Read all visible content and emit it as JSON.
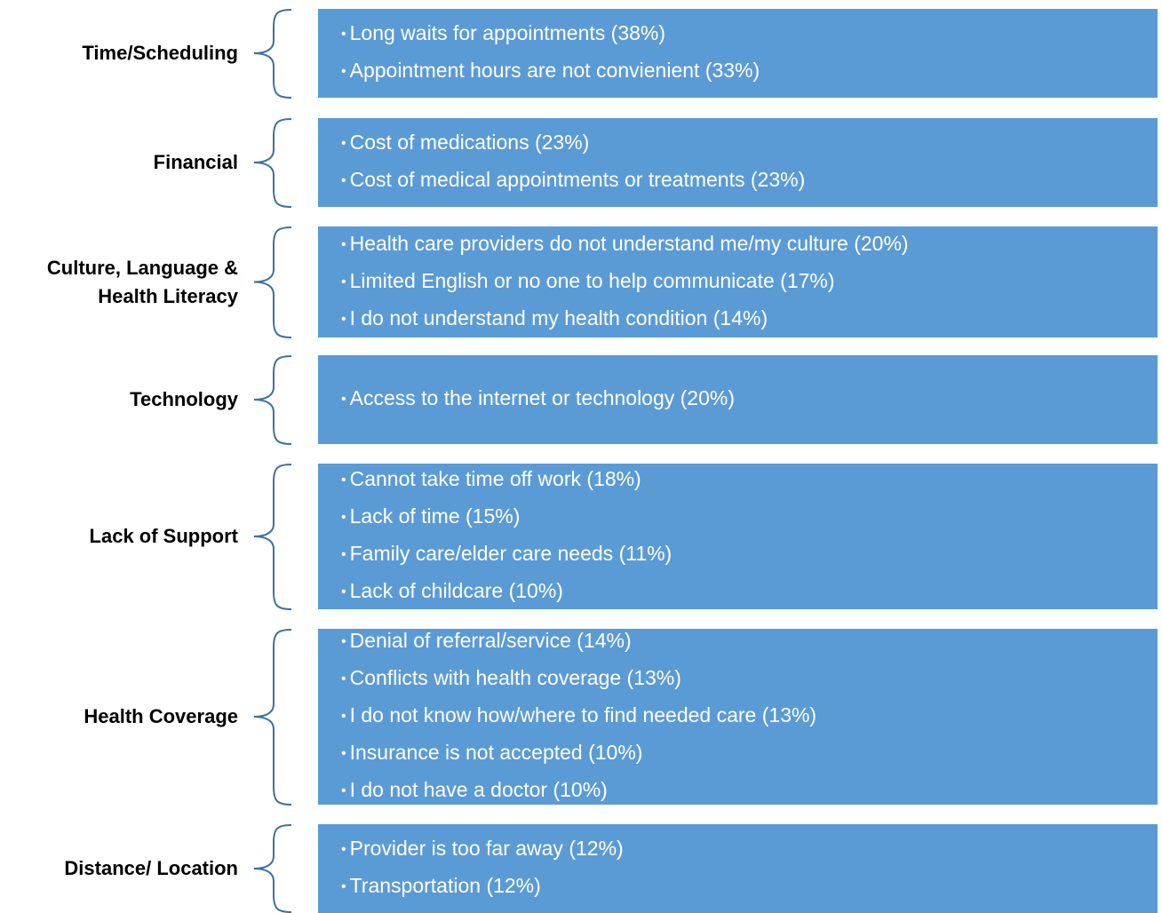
{
  "groups": [
    {
      "label": "Time/Scheduling",
      "items": [
        "Long waits for appointments (38%)",
        "Appointment hours are not convienient (33%)"
      ]
    },
    {
      "label": "Financial",
      "items": [
        "Cost of medications (23%)",
        "Cost of medical appointments or treatments (23%)"
      ]
    },
    {
      "label": "Culture, Language & Health Literacy",
      "items": [
        "Health care providers do not understand me/my culture (20%)",
        "Limited English or no one to help communicate (17%)",
        "I do not understand my health condition (14%)"
      ]
    },
    {
      "label": "Technology",
      "items": [
        "Access to the internet or technology (20%)"
      ]
    },
    {
      "label": "Lack of Support",
      "items": [
        "Cannot take time off work (18%)",
        "Lack of time (15%)",
        "Family care/elder care needs (11%)",
        "Lack of childcare (10%)"
      ]
    },
    {
      "label": "Health Coverage",
      "items": [
        "Denial of referral/service (14%)",
        "Conflicts with health coverage (13%)",
        "I do not know how/where to find needed care (13%)",
        "Insurance is not accepted (10%)",
        "I do not have a doctor (10%)"
      ]
    },
    {
      "label": "Distance/ Location",
      "items": [
        "Provider is too far away (12%)",
        "Transportation (12%)"
      ]
    }
  ]
}
